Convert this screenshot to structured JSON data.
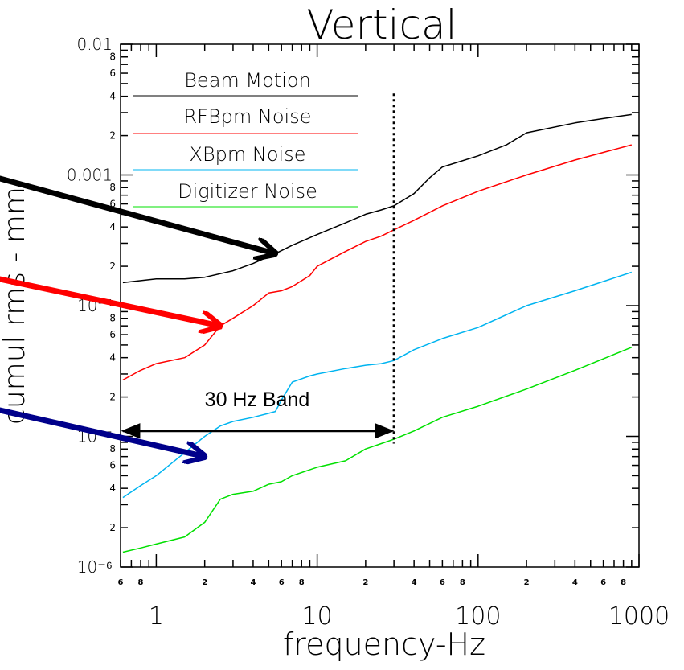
{
  "chart_data": {
    "type": "line",
    "title": "Vertical",
    "xlabel": "frequency-Hz",
    "ylabel": "cumul rms - mm",
    "xscale": "log",
    "yscale": "log",
    "xlim": [
      0.6,
      1000
    ],
    "ylim": [
      1e-06,
      0.01
    ],
    "x_tick_labels": [
      {
        "value": 1,
        "label": "1"
      },
      {
        "value": 10,
        "label": "10"
      },
      {
        "value": 100,
        "label": "100"
      },
      {
        "value": 1000,
        "label": "1000"
      }
    ],
    "x_minor_labels": [
      {
        "value": 0.6,
        "label": "6"
      },
      {
        "value": 0.8,
        "label": "8"
      },
      {
        "value": 2,
        "label": "2"
      },
      {
        "value": 4,
        "label": "4"
      },
      {
        "value": 6,
        "label": "6"
      },
      {
        "value": 8,
        "label": "8"
      },
      {
        "value": 20,
        "label": "2"
      },
      {
        "value": 40,
        "label": "4"
      },
      {
        "value": 60,
        "label": "6"
      },
      {
        "value": 80,
        "label": "8"
      },
      {
        "value": 200,
        "label": "2"
      },
      {
        "value": 400,
        "label": "4"
      },
      {
        "value": 600,
        "label": "6"
      },
      {
        "value": 800,
        "label": "8"
      }
    ],
    "y_tick_labels": [
      {
        "value": 0.01,
        "label": "0.01"
      },
      {
        "value": 0.001,
        "label": "0.001"
      },
      {
        "value": 0.0001,
        "label": "10⁻⁴"
      },
      {
        "value": 1e-05,
        "label": "10⁻⁵"
      },
      {
        "value": 1e-06,
        "label": "10⁻⁶"
      }
    ],
    "y_minor_labels": [
      {
        "value": 0.008,
        "label": "8"
      },
      {
        "value": 0.006,
        "label": "6"
      },
      {
        "value": 0.004,
        "label": "4"
      },
      {
        "value": 0.002,
        "label": "2"
      },
      {
        "value": 0.0008,
        "label": "8"
      },
      {
        "value": 0.0006,
        "label": "6"
      },
      {
        "value": 0.0004,
        "label": "4"
      },
      {
        "value": 0.0002,
        "label": "2"
      },
      {
        "value": 8e-05,
        "label": "8"
      },
      {
        "value": 6e-05,
        "label": "6"
      },
      {
        "value": 4e-05,
        "label": "4"
      },
      {
        "value": 2e-05,
        "label": "2"
      },
      {
        "value": 8e-06,
        "label": "8"
      },
      {
        "value": 6e-06,
        "label": "6"
      },
      {
        "value": 4e-06,
        "label": "4"
      },
      {
        "value": 2e-06,
        "label": "2"
      }
    ],
    "legend": {
      "placement": "top-left"
    },
    "grid": false,
    "series": [
      {
        "name": "Beam Motion",
        "color": "#000000",
        "x": [
          0.62,
          1.0,
          1.5,
          2.0,
          3.0,
          4.0,
          5.5,
          7.0,
          10,
          15,
          20,
          25,
          30,
          40,
          50,
          60,
          100,
          150,
          200,
          400,
          600,
          900
        ],
        "y": [
          0.00015,
          0.00016,
          0.00016,
          0.000165,
          0.000185,
          0.00021,
          0.00025,
          0.00029,
          0.00035,
          0.00043,
          0.0005,
          0.00054,
          0.00058,
          0.00072,
          0.00095,
          0.00115,
          0.0014,
          0.0017,
          0.0021,
          0.0025,
          0.0027,
          0.0029
        ]
      },
      {
        "name": "RFBpm Noise",
        "color": "#ff0000",
        "x": [
          0.62,
          0.8,
          1.0,
          1.5,
          2.0,
          2.5,
          3.0,
          4.0,
          5.0,
          6.0,
          7.0,
          9.0,
          10,
          15,
          20,
          25,
          30,
          40,
          60,
          100,
          200,
          400,
          900
        ],
        "y": [
          2.7e-05,
          3.2e-05,
          3.6e-05,
          4e-05,
          5e-05,
          7e-05,
          8e-05,
          0.0001,
          0.000125,
          0.00013,
          0.00014,
          0.00017,
          0.0002,
          0.00026,
          0.00031,
          0.00034,
          0.00038,
          0.00045,
          0.00058,
          0.00075,
          0.001,
          0.0013,
          0.0017
        ]
      },
      {
        "name": "XBpm Noise",
        "color": "#00b4f0",
        "x": [
          0.62,
          0.8,
          1.0,
          1.5,
          2.0,
          2.5,
          3.0,
          4.0,
          5.0,
          5.5,
          6.0,
          7.0,
          9.0,
          10,
          15,
          20,
          25,
          30,
          40,
          60,
          100,
          200,
          400,
          900
        ],
        "y": [
          3.4e-06,
          4.2e-06,
          5e-06,
          7.5e-06,
          1e-05,
          1.2e-05,
          1.3e-05,
          1.4e-05,
          1.5e-05,
          1.55e-05,
          1.9e-05,
          2.6e-05,
          2.9e-05,
          3e-05,
          3.3e-05,
          3.5e-05,
          3.6e-05,
          3.8e-05,
          4.6e-05,
          5.6e-05,
          6.8e-05,
          0.0001,
          0.00013,
          0.00018
        ]
      },
      {
        "name": "Digitizer Noise",
        "color": "#00e000",
        "x": [
          0.62,
          0.8,
          1.0,
          1.5,
          2.0,
          2.5,
          3.0,
          4.0,
          5.0,
          6.0,
          7.0,
          10,
          15,
          20,
          25,
          30,
          40,
          60,
          100,
          200,
          400,
          900
        ],
        "y": [
          1.3e-06,
          1.4e-06,
          1.5e-06,
          1.7e-06,
          2.2e-06,
          3.3e-06,
          3.6e-06,
          3.8e-06,
          4.3e-06,
          4.5e-06,
          5e-06,
          5.8e-06,
          6.5e-06,
          8e-06,
          8.8e-06,
          9.5e-06,
          1.1e-05,
          1.4e-05,
          1.7e-05,
          2.3e-05,
          3.2e-05,
          4.8e-05
        ]
      }
    ],
    "vertical_line": {
      "x": 30,
      "style": "dotted",
      "color": "#000000"
    },
    "annotations": [
      {
        "text": "30 Hz Band",
        "type": "double-arrow",
        "from_x": 0.62,
        "to_x": 30,
        "y": 1.1e-05,
        "color": "#000000"
      }
    ],
    "callout_arrows": [
      {
        "target_series": "Beam Motion",
        "color": "#000000",
        "tip_x": 5.5,
        "tip_y": 0.00025
      },
      {
        "target_series": "RFBpm Noise",
        "color": "#ff0000",
        "tip_x": 2.5,
        "tip_y": 7e-05
      },
      {
        "target_series": "XBpm Noise",
        "color": "#00008b",
        "tip_x": 2.0,
        "tip_y": 7e-06
      }
    ]
  }
}
